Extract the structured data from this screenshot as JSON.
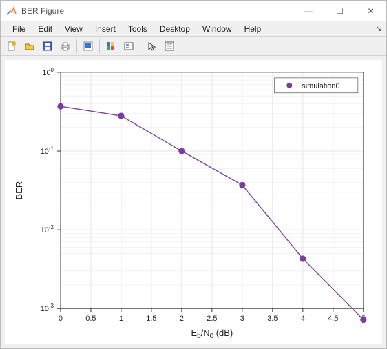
{
  "window": {
    "title": "BER Figure",
    "app_icon_colors": [
      "#f08030",
      "#3377cc"
    ],
    "controls": {
      "minimize": "—",
      "maximize": "☐",
      "close": "✕"
    }
  },
  "menubar": {
    "items": [
      "File",
      "Edit",
      "View",
      "Insert",
      "Tools",
      "Desktop",
      "Window",
      "Help"
    ]
  },
  "toolbar": {
    "buttons": [
      {
        "name": "new-figure-icon",
        "colors": {
          "fill": "#fff",
          "accent": "#e8b020",
          "border": "#888"
        }
      },
      {
        "name": "open-icon",
        "colors": {
          "fill": "#f6c84c",
          "border": "#a07000"
        }
      },
      {
        "name": "save-icon",
        "colors": {
          "fill": "#4a68c8",
          "border": "#2a3a88",
          "label": "#fff"
        }
      },
      {
        "name": "print-icon",
        "colors": {
          "fill": "#d8d8d8",
          "border": "#888"
        }
      },
      {
        "sep": true
      },
      {
        "name": "print-preview-icon",
        "colors": {
          "fill": "#fff",
          "accent": "#3377cc",
          "border": "#888"
        }
      },
      {
        "sep": true
      },
      {
        "name": "insert-colorbar-icon",
        "colors": {
          "a": "#3377cc",
          "b": "#f6c84c",
          "c": "#33aa55",
          "d": "#cc5555",
          "border": "#555"
        }
      },
      {
        "name": "legend-icon",
        "colors": {
          "fill": "#fff",
          "border": "#555",
          "line1": "#3377cc",
          "line2": "#cc5555"
        }
      },
      {
        "sep": true
      },
      {
        "name": "pointer-icon",
        "colors": {
          "stroke": "#333"
        }
      },
      {
        "name": "properties-icon",
        "colors": {
          "fill": "#fff",
          "border": "#555",
          "line": "#888"
        }
      }
    ]
  },
  "chart": {
    "type": "line+scatter",
    "background_color": "#ffffff",
    "plot_bg_color": "#ffffff",
    "grid_color": "#e6e6e6",
    "grid_minor_color": "#f2f2f2",
    "axis_color": "#333333",
    "x": {
      "label": "E_b/N_0 (dB)",
      "lim": [
        0,
        5
      ],
      "tick_step": 0.5,
      "label_fontsize": 13,
      "tick_fontsize": 11
    },
    "y": {
      "label": "BER",
      "scale": "log",
      "lim_exp": [
        -3,
        0
      ],
      "label_fontsize": 13,
      "tick_fontsize": 11
    },
    "series": [
      {
        "name": "simulation0",
        "color": "#7b3ca0",
        "marker": "circle",
        "marker_size": 6,
        "line_width": 1.4,
        "x": [
          0,
          1,
          2,
          3,
          4,
          5
        ],
        "y": [
          0.37,
          0.28,
          0.1,
          0.037,
          0.0043,
          0.00072
        ]
      }
    ],
    "legend": {
      "position": "upper-right",
      "fontsize": 12,
      "border_color": "#555555",
      "bg": "#ffffff"
    }
  }
}
